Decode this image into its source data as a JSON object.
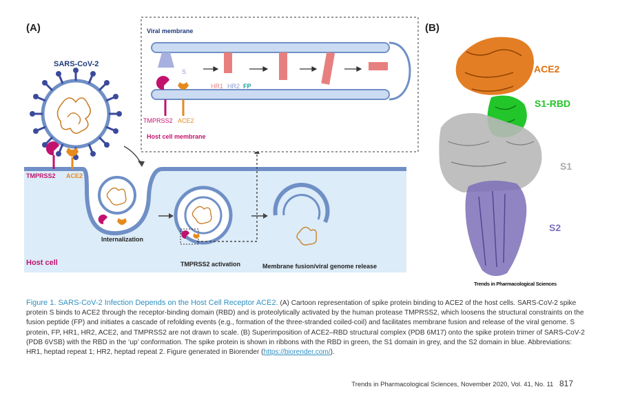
{
  "panels": {
    "a": "(A)",
    "b": "(B)"
  },
  "diagram_a": {
    "virus_label": "SARS-CoV-2",
    "tmprss2": "TMPRSS2",
    "ace2": "ACE2",
    "internalization": "Internalization",
    "tmprss2_activation": "TMPRSS2 activation",
    "fusion_release": "Membrane fusion/viral genome release",
    "host_cell": "Host cell",
    "inset": {
      "viral_membrane": "Viral membrane",
      "s": "S",
      "hr1": "HR1",
      "hr2": "HR2",
      "fp": "FP",
      "tmprss2": "TMPRSS2",
      "ace2": "ACE2",
      "host_membrane": "Host cell membrane"
    }
  },
  "diagram_b": {
    "ace2": "ACE2",
    "s1_rbd": "S1-RBD",
    "s1": "S1",
    "s2": "S2"
  },
  "journal_tag": "Trends in Pharmacological Sciences",
  "caption": {
    "title": "Figure 1. SARS-CoV-2 Infection Depends on the Host Cell Receptor ACE2.",
    "body": "(A) Cartoon representation of spike protein binding to ACE2 of the host cells. SARS-CoV-2 spike protein S binds to ACE2 through the receptor-binding domain (RBD) and is proteolytically activated by the human protease TMPRSS2, which loosens the structural constraints on the fusion peptide (FP) and initiates a cascade of refolding events (e.g., formation of the three-stranded coiled-coil) and facilitates membrane fusion and release of the viral genome. S protein, FP, HR1, HR2, ACE2, and TMPRSS2 are not drawn to scale. (B) Superimposition of ACE2–RBD structural complex (PDB 6M17) onto the spike protein trimer of SARS-CoV-2 (PDB 6VSB) with the RBD in the ‘up’ conformation. The spike protein is shown in ribbons with the RBD in green, the S1 domain in grey, and the S2 domain in blue. Abbreviations: HR1, heptad repeat 1; HR2, heptad repeat 2. Figure generated in Biorender (",
    "link": "https://biorender.com/",
    "end": ")."
  },
  "footer": {
    "citation": "Trends in Pharmacological Sciences, November 2020, Vol. 41, No. 11",
    "page": "817"
  },
  "colors": {
    "spike": "#3b4a9c",
    "capsid_membrane": "#6f8fc6",
    "rna": "#c9812a",
    "tmprss2": "#c2126e",
    "ace2": "#e58a1f",
    "cell_fill": "#dcecf8",
    "host_label": "#c2126e",
    "rbd_green": "#22c52a",
    "ace2_orange": "#e0700c",
    "s1_grey": "#a9a9a9",
    "s2_purple": "#7d6fb8"
  }
}
